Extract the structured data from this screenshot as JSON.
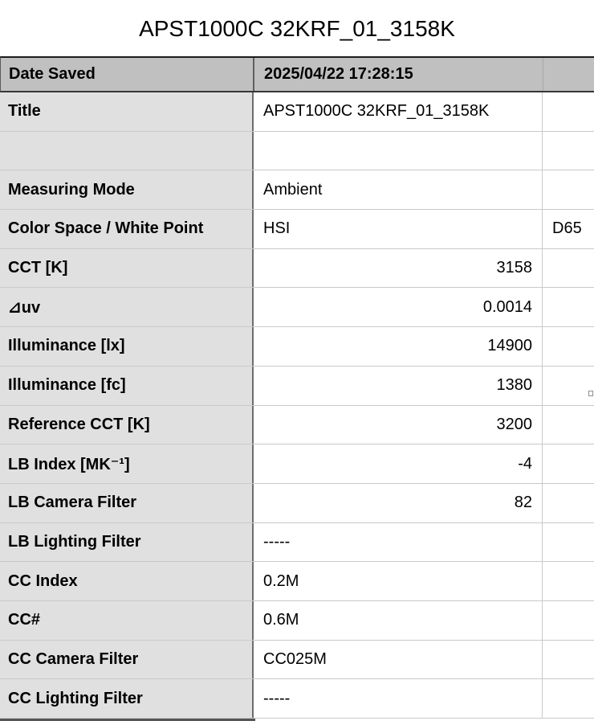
{
  "page_title": "APST1000C 32KRF_01_3158K",
  "table": {
    "header": {
      "label": "Date Saved",
      "value": "2025/04/22 17:28:15",
      "extra": ""
    },
    "rows": [
      {
        "label": "Title",
        "value": "APST1000C 32KRF_01_3158K",
        "extra": "",
        "align": "left"
      },
      {
        "label": "",
        "value": "",
        "extra": "",
        "align": "left"
      },
      {
        "label": "Measuring Mode",
        "value": "Ambient",
        "extra": "",
        "align": "left"
      },
      {
        "label": "Color Space / White Point",
        "value": "HSI",
        "extra": "D65",
        "align": "left"
      },
      {
        "label": "CCT [K]",
        "value": "3158",
        "extra": "",
        "align": "right"
      },
      {
        "label": "⊿uv",
        "value": "0.0014",
        "extra": "",
        "align": "right"
      },
      {
        "label": "Illuminance [lx]",
        "value": "14900",
        "extra": "",
        "align": "right"
      },
      {
        "label": "Illuminance [fc]",
        "value": "1380",
        "extra": "",
        "align": "right"
      },
      {
        "label": "Reference CCT [K]",
        "value": "3200",
        "extra": "",
        "align": "right"
      },
      {
        "label": "LB Index [MK⁻¹]",
        "value": "-4",
        "extra": "",
        "align": "right"
      },
      {
        "label": "LB Camera Filter",
        "value": "82",
        "extra": "",
        "align": "right"
      },
      {
        "label": "LB Lighting Filter",
        "value": "-----",
        "extra": "",
        "align": "left"
      },
      {
        "label": "CC Index",
        "value": "0.2M",
        "extra": "",
        "align": "left"
      },
      {
        "label": "CC#",
        "value": "0.6M",
        "extra": "",
        "align": "left"
      },
      {
        "label": "CC Camera Filter",
        "value": "CC025M",
        "extra": "",
        "align": "left"
      },
      {
        "label": "CC Lighting Filter",
        "value": "-----",
        "extra": "",
        "align": "left"
      }
    ]
  },
  "colors": {
    "header_bg": "#c0c0c0",
    "label_bg": "#e0e0e0",
    "value_bg": "#ffffff",
    "divider_dark": "#6e6e6e",
    "border_light": "#c9c9c9",
    "border_dark": "#1c1c1c",
    "text": "#000000"
  }
}
